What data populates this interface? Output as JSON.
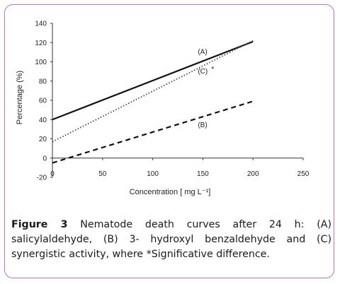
{
  "caption": {
    "label": "Figure 3",
    "text": " Nematode death curves after 24 h: (A) salicylaldehyde, (B) 3- hydroxyl benzaldehyde and (C) synergistic activity, where *Significative difference."
  },
  "chart_data": {
    "type": "line",
    "xlabel": "Concentration [ mg L⁻¹]",
    "ylabel": "Percentage (%)",
    "xlim": [
      0,
      250
    ],
    "ylim": [
      -20,
      140
    ],
    "xticks": [
      0,
      50,
      100,
      150,
      200,
      250
    ],
    "yticks": [
      -20,
      0,
      20,
      40,
      60,
      80,
      100,
      120,
      140
    ],
    "grid": false,
    "series": [
      {
        "name": "(A)",
        "style": "solid",
        "color": "#111111",
        "x": [
          0,
          200
        ],
        "y": [
          40,
          121
        ]
      },
      {
        "name": "(B)",
        "style": "dashed",
        "color": "#111111",
        "x": [
          0,
          200
        ],
        "y": [
          -5,
          59
        ]
      },
      {
        "name": "(C)",
        "style": "dotted",
        "color": "#555555",
        "x": [
          0,
          200
        ],
        "y": [
          17,
          122
        ]
      }
    ],
    "annotations": [
      {
        "text": "*",
        "series": "(C)"
      }
    ]
  }
}
